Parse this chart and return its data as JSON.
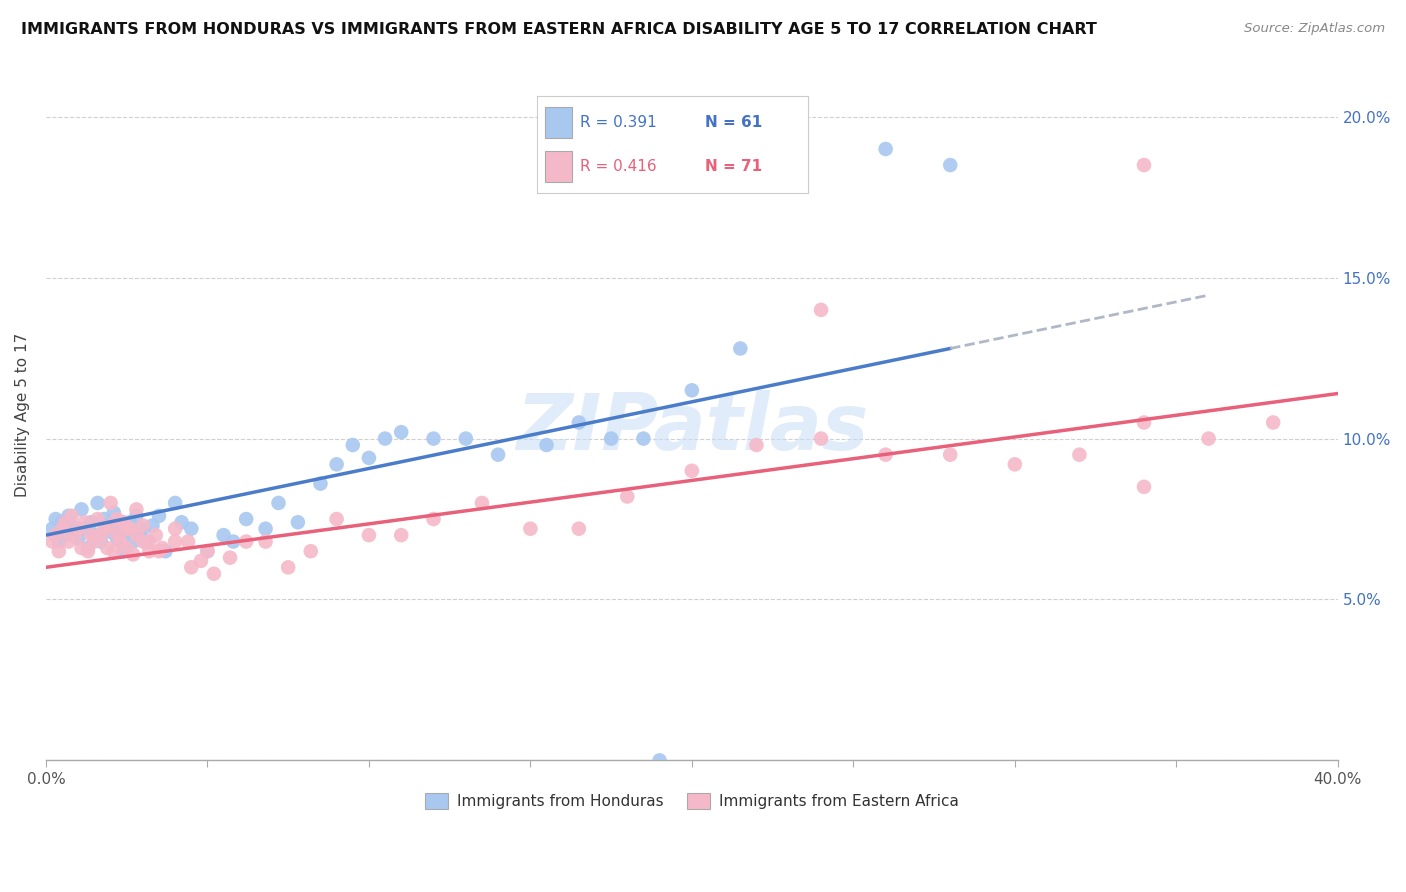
{
  "title": "IMMIGRANTS FROM HONDURAS VS IMMIGRANTS FROM EASTERN AFRICA DISABILITY AGE 5 TO 17 CORRELATION CHART",
  "source": "Source: ZipAtlas.com",
  "ylabel": "Disability Age 5 to 17",
  "xlim": [
    0.0,
    0.4
  ],
  "ylim": [
    0.0,
    0.215
  ],
  "color_honduras": "#a8c8f0",
  "color_eastern_africa": "#f5b8c8",
  "color_line_honduras": "#4a7cc9",
  "color_line_eastern_africa": "#e8607a",
  "color_dashed_extension": "#b0b8c8",
  "watermark": "ZIPatlas",
  "honduras_x": [
    0.002,
    0.003,
    0.004,
    0.005,
    0.006,
    0.007,
    0.008,
    0.009,
    0.01,
    0.011,
    0.012,
    0.013,
    0.014,
    0.015,
    0.016,
    0.017,
    0.018,
    0.019,
    0.02,
    0.021,
    0.022,
    0.023,
    0.024,
    0.025,
    0.026,
    0.027,
    0.028,
    0.029,
    0.03,
    0.031,
    0.033,
    0.035,
    0.037,
    0.04,
    0.042,
    0.045,
    0.05,
    0.055,
    0.058,
    0.062,
    0.068,
    0.072,
    0.078,
    0.085,
    0.09,
    0.095,
    0.1,
    0.105,
    0.11,
    0.12,
    0.13,
    0.14,
    0.155,
    0.165,
    0.175,
    0.185,
    0.2,
    0.215,
    0.26,
    0.28,
    0.19
  ],
  "honduras_y": [
    0.072,
    0.075,
    0.068,
    0.074,
    0.07,
    0.076,
    0.073,
    0.071,
    0.069,
    0.078,
    0.072,
    0.066,
    0.074,
    0.07,
    0.08,
    0.068,
    0.075,
    0.073,
    0.071,
    0.077,
    0.069,
    0.073,
    0.065,
    0.071,
    0.074,
    0.068,
    0.076,
    0.07,
    0.072,
    0.068,
    0.073,
    0.076,
    0.065,
    0.08,
    0.074,
    0.072,
    0.065,
    0.07,
    0.068,
    0.075,
    0.072,
    0.08,
    0.074,
    0.086,
    0.092,
    0.098,
    0.094,
    0.1,
    0.102,
    0.1,
    0.1,
    0.095,
    0.098,
    0.105,
    0.1,
    0.1,
    0.115,
    0.128,
    0.19,
    0.185,
    0.0
  ],
  "eastern_x": [
    0.002,
    0.003,
    0.004,
    0.005,
    0.006,
    0.007,
    0.008,
    0.009,
    0.01,
    0.011,
    0.012,
    0.013,
    0.014,
    0.015,
    0.016,
    0.017,
    0.018,
    0.019,
    0.02,
    0.021,
    0.022,
    0.023,
    0.024,
    0.025,
    0.026,
    0.027,
    0.028,
    0.03,
    0.032,
    0.034,
    0.036,
    0.04,
    0.044,
    0.048,
    0.052,
    0.057,
    0.062,
    0.068,
    0.075,
    0.082,
    0.09,
    0.1,
    0.11,
    0.12,
    0.135,
    0.15,
    0.165,
    0.18,
    0.2,
    0.22,
    0.24,
    0.26,
    0.28,
    0.3,
    0.32,
    0.34,
    0.34,
    0.36,
    0.38,
    0.24,
    0.02,
    0.022,
    0.025,
    0.028,
    0.03,
    0.032,
    0.035,
    0.04,
    0.045,
    0.05,
    0.34
  ],
  "eastern_y": [
    0.068,
    0.07,
    0.065,
    0.072,
    0.074,
    0.068,
    0.076,
    0.07,
    0.072,
    0.066,
    0.074,
    0.065,
    0.07,
    0.068,
    0.075,
    0.07,
    0.072,
    0.066,
    0.073,
    0.065,
    0.07,
    0.068,
    0.074,
    0.066,
    0.072,
    0.064,
    0.07,
    0.068,
    0.065,
    0.07,
    0.066,
    0.072,
    0.068,
    0.062,
    0.058,
    0.063,
    0.068,
    0.068,
    0.06,
    0.065,
    0.075,
    0.07,
    0.07,
    0.075,
    0.08,
    0.072,
    0.072,
    0.082,
    0.09,
    0.098,
    0.1,
    0.095,
    0.095,
    0.092,
    0.095,
    0.105,
    0.085,
    0.1,
    0.105,
    0.14,
    0.08,
    0.075,
    0.072,
    0.078,
    0.073,
    0.068,
    0.065,
    0.068,
    0.06,
    0.065,
    0.185
  ],
  "line_h_x0": 0.0,
  "line_h_x1": 0.28,
  "line_h_dash_x1": 0.36,
  "line_h_y0": 0.07,
  "line_h_y1": 0.128,
  "line_e_x0": 0.0,
  "line_e_x1": 0.4,
  "line_e_y0": 0.06,
  "line_e_y1": 0.114
}
